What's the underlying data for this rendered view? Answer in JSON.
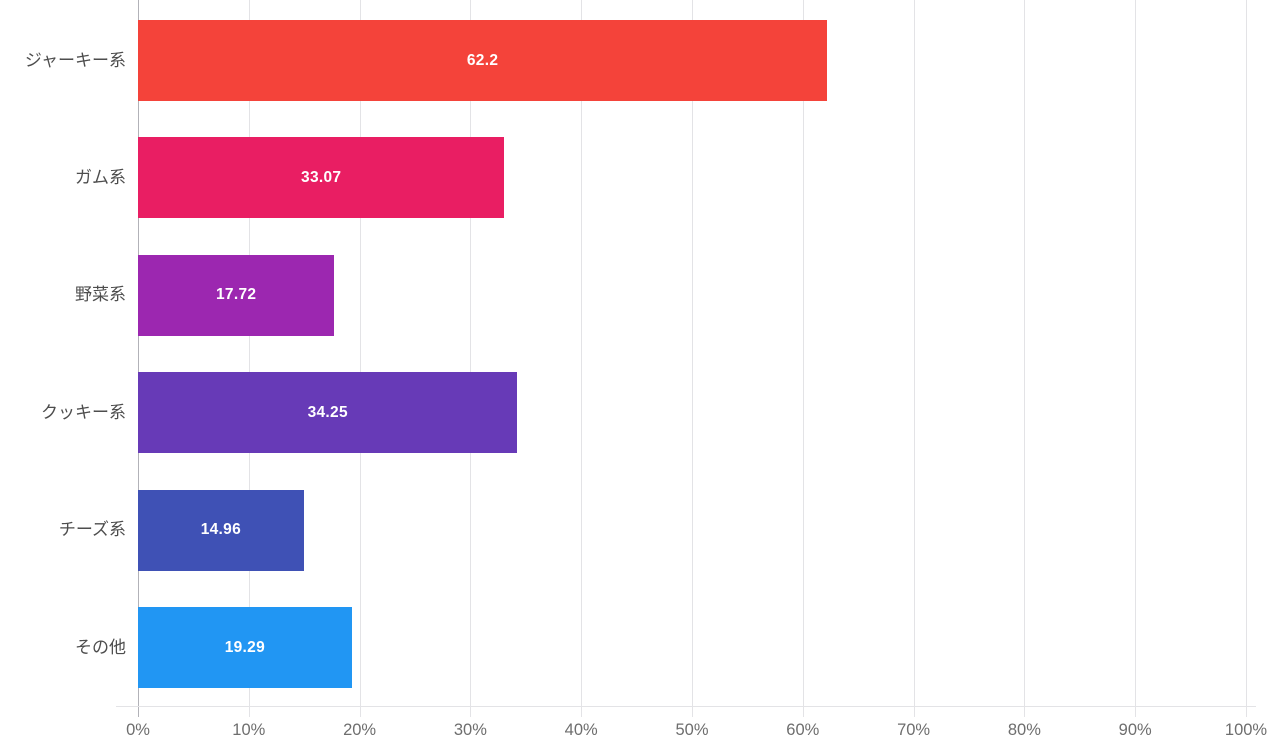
{
  "chart_data": {
    "type": "bar",
    "orientation": "horizontal",
    "title": "",
    "xlabel": "",
    "ylabel": "",
    "xlim": [
      0,
      100
    ],
    "grid": true,
    "legend": "none",
    "categories": [
      "ジャーキー系",
      "ガム系",
      "野菜系",
      "クッキー系",
      "チーズ系",
      "その他"
    ],
    "values": [
      62.2,
      33.07,
      17.72,
      34.25,
      14.96,
      19.29
    ],
    "value_labels": [
      "62.2",
      "33.07",
      "17.72",
      "34.25",
      "14.96",
      "19.29"
    ],
    "bar_colors": [
      "#f4433a",
      "#e91e63",
      "#9c27b0",
      "#673ab7",
      "#3f51b5",
      "#2196f3"
    ],
    "x_tick_values": [
      0,
      10,
      20,
      30,
      40,
      50,
      60,
      70,
      80,
      90,
      100
    ],
    "x_tick_labels": [
      "0%",
      "10%",
      "20%",
      "30%",
      "40%",
      "50%",
      "60%",
      "70%",
      "80%",
      "90%",
      "100%"
    ]
  },
  "colors": {
    "background": "#ffffff",
    "gridline": "#e3e3e6",
    "zero_baseline": "#b2b2b8",
    "axis_line": "#e3e3e6",
    "category_label": "#4d4d4d",
    "tick_label": "#6e6e6e",
    "value_label": "#ffffff"
  }
}
